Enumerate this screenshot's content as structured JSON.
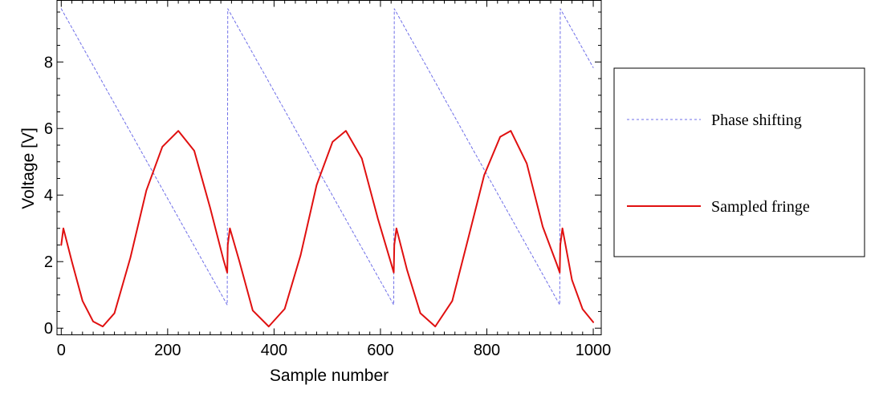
{
  "chart_data": {
    "type": "line",
    "title": "",
    "xlabel": "Sample number",
    "ylabel": "Voltage [V]",
    "xlim": [
      -8,
      1015
    ],
    "ylim": [
      -0.2,
      9.85
    ],
    "xticks": [
      0,
      200,
      400,
      600,
      800,
      1000
    ],
    "xtick_labels": [
      "0",
      "200",
      "400",
      "600",
      "800",
      "1000"
    ],
    "yticks": [
      0,
      2,
      4,
      6,
      8
    ],
    "ytick_labels": [
      "0",
      "2",
      "4",
      "6",
      "8"
    ],
    "grid": false,
    "legend_position": "right",
    "series": [
      {
        "name": "Phase shifting",
        "style": "dashed",
        "color": "#6f6fe8",
        "x": [
          0,
          312,
          313,
          625,
          626,
          937,
          938,
          1000
        ],
        "y": [
          9.6,
          0.7,
          9.6,
          0.7,
          9.6,
          0.7,
          9.6,
          7.83
        ]
      },
      {
        "name": "Sampled fringe",
        "style": "solid",
        "color": "#e01010",
        "x": [
          0,
          4,
          20,
          40,
          60,
          78,
          100,
          130,
          160,
          190,
          220,
          250,
          280,
          305,
          312,
          313,
          317,
          335,
          360,
          390,
          420,
          450,
          480,
          510,
          535,
          565,
          595,
          620,
          625,
          626,
          630,
          650,
          675,
          703,
          735,
          765,
          795,
          825,
          845,
          875,
          905,
          932,
          937,
          938,
          942,
          960,
          980,
          1000
        ],
        "y": [
          2.5,
          3.0,
          2.0,
          0.82,
          0.2,
          0.05,
          0.45,
          2.12,
          4.14,
          5.45,
          5.93,
          5.33,
          3.61,
          2.05,
          1.67,
          2.5,
          3.0,
          2.0,
          0.53,
          0.05,
          0.58,
          2.2,
          4.3,
          5.6,
          5.93,
          5.1,
          3.3,
          1.95,
          1.67,
          2.5,
          3.0,
          1.75,
          0.45,
          0.05,
          0.82,
          2.7,
          4.6,
          5.75,
          5.93,
          4.95,
          3.05,
          1.9,
          1.67,
          2.5,
          3.0,
          1.45,
          0.57,
          0.18
        ]
      }
    ]
  }
}
